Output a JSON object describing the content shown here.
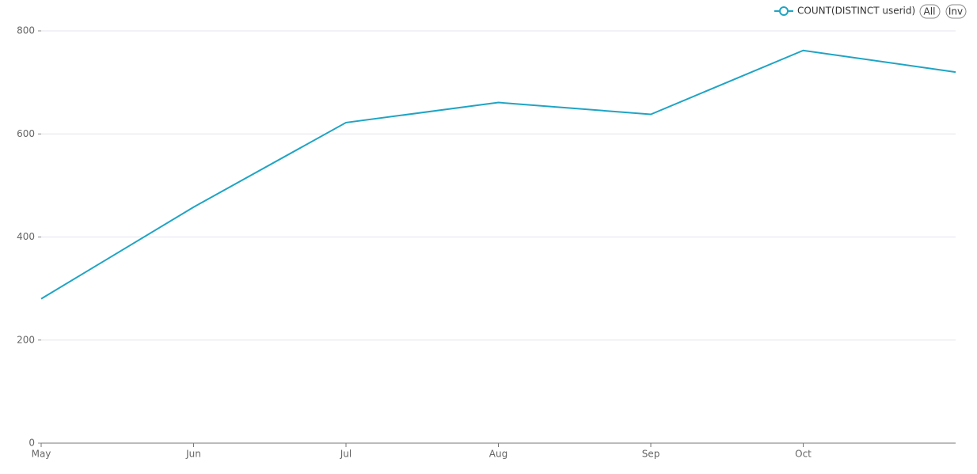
{
  "chart_data": {
    "type": "line",
    "categories": [
      "May",
      "Jun",
      "Jul",
      "Aug",
      "Sep",
      "Oct",
      null
    ],
    "series": [
      {
        "name": "COUNT(DISTINCT userid)",
        "color": "#1fa4c4",
        "values": [
          280,
          458,
          622,
          661,
          638,
          762,
          720
        ]
      }
    ],
    "ylim": [
      0,
      800
    ],
    "yticks": [
      0,
      200,
      400,
      600,
      800
    ],
    "grid": true,
    "legend_position": "top-right",
    "legend_buttons": [
      "All",
      "Inv"
    ]
  }
}
